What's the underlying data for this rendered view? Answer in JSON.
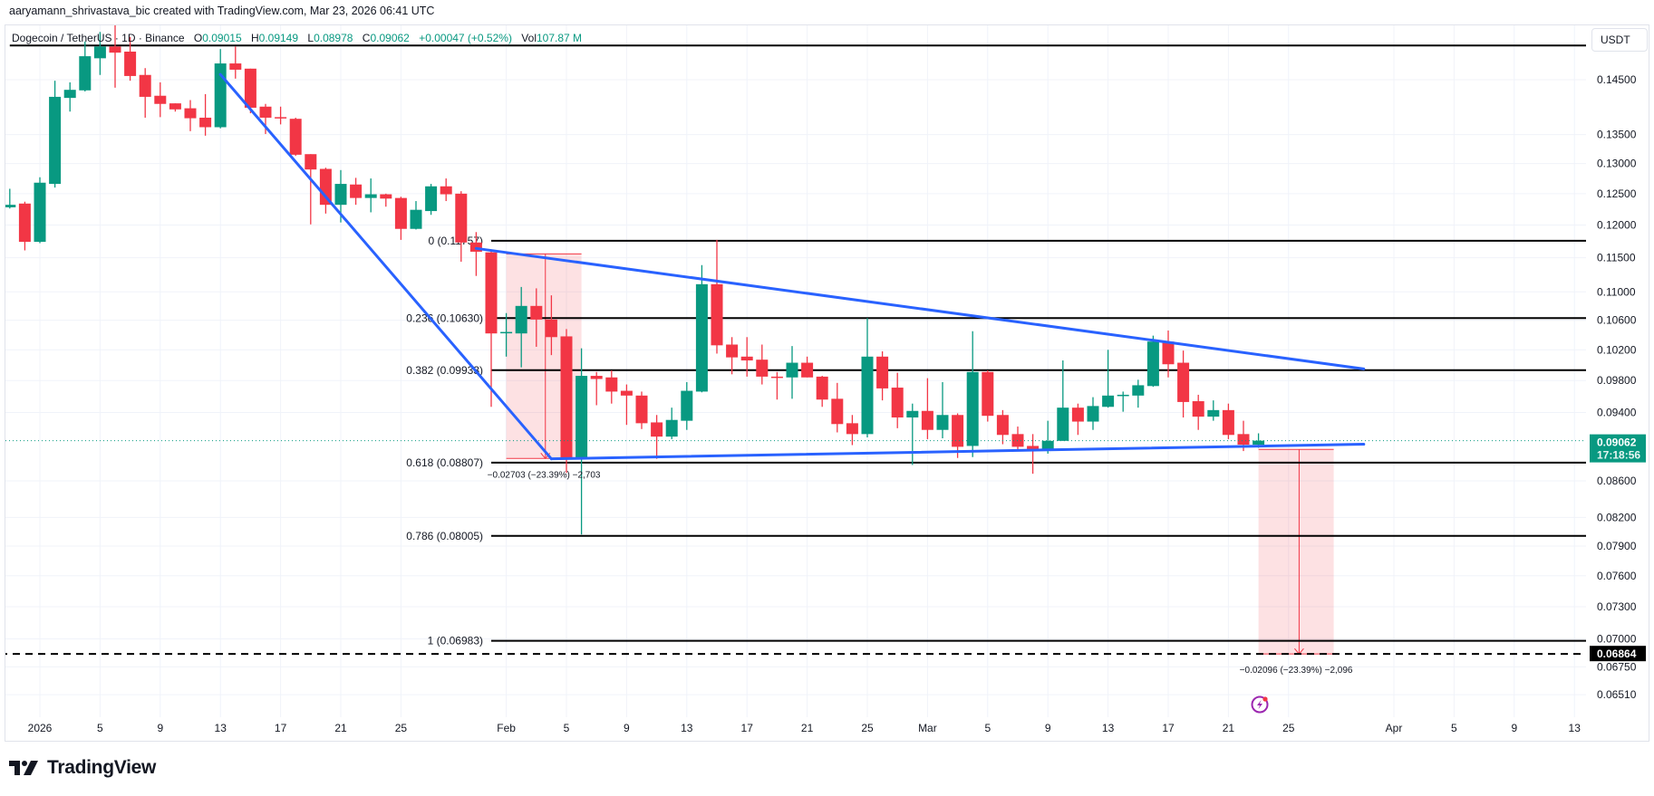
{
  "header": {
    "credit": "aaryamann_shrivastava_bic created with TradingView.com, Mar 23, 2026 06:41 UTC"
  },
  "legend": {
    "symbol": "Dogecoin / TetherUS · 1D · Binance",
    "open_label": "O",
    "open": "0.09015",
    "high_label": "H",
    "high": "0.09149",
    "low_label": "L",
    "low": "0.08978",
    "close_label": "C",
    "close": "0.09062",
    "change": "+0.00047 (+0.52%)",
    "vol_label": "Vol",
    "vol": "107.87 M"
  },
  "currency_button": "USDT",
  "brand": "TradingView",
  "colors": {
    "up": "#089981",
    "down": "#F23645",
    "trendline": "#2962FF",
    "measure_fill": "rgba(242,54,69,0.15)",
    "measure_line": "#F23645",
    "fib_line": "#000000",
    "grid": "#f0f3fa",
    "alert_icon": "#9C27B0"
  },
  "chart_data": {
    "type": "candlestick",
    "title": "",
    "y_scale": "log",
    "grid": true,
    "ylim": [
      0.064,
      0.158
    ],
    "xlim": [
      "2025-12-29",
      "2026-04-15"
    ],
    "price_ticks": [
      "0.14500",
      "0.13500",
      "0.13000",
      "0.12500",
      "0.12000",
      "0.11500",
      "0.11000",
      "0.10600",
      "0.10200",
      "0.09800",
      "0.09400",
      "0.08600",
      "0.08200",
      "0.07900",
      "0.07600",
      "0.07300",
      "0.07000",
      "0.06750",
      "0.06510"
    ],
    "time_ticks": [
      {
        "date": "2026-01-01",
        "label": "2026"
      },
      {
        "date": "2026-01-05",
        "label": "5"
      },
      {
        "date": "2026-01-09",
        "label": "9"
      },
      {
        "date": "2026-01-13",
        "label": "13"
      },
      {
        "date": "2026-01-17",
        "label": "17"
      },
      {
        "date": "2026-01-21",
        "label": "21"
      },
      {
        "date": "2026-01-25",
        "label": "25"
      },
      {
        "date": "2026-02-01",
        "label": "Feb"
      },
      {
        "date": "2026-02-05",
        "label": "5"
      },
      {
        "date": "2026-02-09",
        "label": "9"
      },
      {
        "date": "2026-02-13",
        "label": "13"
      },
      {
        "date": "2026-02-17",
        "label": "17"
      },
      {
        "date": "2026-02-21",
        "label": "21"
      },
      {
        "date": "2026-02-25",
        "label": "25"
      },
      {
        "date": "2026-03-01",
        "label": "Mar"
      },
      {
        "date": "2026-03-05",
        "label": "5"
      },
      {
        "date": "2026-03-09",
        "label": "9"
      },
      {
        "date": "2026-03-13",
        "label": "13"
      },
      {
        "date": "2026-03-17",
        "label": "17"
      },
      {
        "date": "2026-03-21",
        "label": "21"
      },
      {
        "date": "2026-03-25",
        "label": "25"
      },
      {
        "date": "2026-04-01",
        "label": "Apr"
      },
      {
        "date": "2026-04-05",
        "label": "5"
      },
      {
        "date": "2026-04-09",
        "label": "9"
      },
      {
        "date": "2026-04-13",
        "label": "13"
      }
    ],
    "candles": [
      [
        "2025-12-30",
        0.1228,
        0.1258,
        0.1226,
        0.1232
      ],
      [
        "2025-12-31",
        0.1234,
        0.1237,
        0.1161,
        0.1174
      ],
      [
        "2026-01-01",
        0.1174,
        0.1277,
        0.1172,
        0.1268
      ],
      [
        "2026-01-02",
        0.1266,
        0.1448,
        0.126,
        0.1418
      ],
      [
        "2026-01-03",
        0.1416,
        0.1445,
        0.1391,
        0.1431
      ],
      [
        "2026-01-04",
        0.143,
        0.1524,
        0.1428,
        0.1495
      ],
      [
        "2026-01-05",
        0.1491,
        0.1543,
        0.1459,
        0.1514
      ],
      [
        "2026-01-06",
        0.1514,
        0.156,
        0.1435,
        0.1502
      ],
      [
        "2026-01-07",
        0.1504,
        0.1533,
        0.1448,
        0.1457
      ],
      [
        "2026-01-08",
        0.1459,
        0.1472,
        0.138,
        0.1418
      ],
      [
        "2026-01-09",
        0.142,
        0.1445,
        0.1381,
        0.1405
      ],
      [
        "2026-01-10",
        0.1406,
        0.1406,
        0.1391,
        0.1395
      ],
      [
        "2026-01-11",
        0.1397,
        0.1412,
        0.1356,
        0.1379
      ],
      [
        "2026-01-12",
        0.138,
        0.1423,
        0.1348,
        0.1363
      ],
      [
        "2026-01-13",
        0.1363,
        0.1509,
        0.1361,
        0.1481
      ],
      [
        "2026-01-14",
        0.1481,
        0.1514,
        0.1452,
        0.1469
      ],
      [
        "2026-01-15",
        0.1471,
        0.1471,
        0.1388,
        0.1398
      ],
      [
        "2026-01-16",
        0.14,
        0.1405,
        0.1351,
        0.138
      ],
      [
        "2026-01-17",
        0.1381,
        0.14,
        0.1368,
        0.1379
      ],
      [
        "2026-01-18",
        0.1378,
        0.138,
        0.1313,
        0.1315
      ],
      [
        "2026-01-19",
        0.1316,
        0.1316,
        0.1201,
        0.129
      ],
      [
        "2026-01-20",
        0.1291,
        0.1293,
        0.1218,
        0.1232
      ],
      [
        "2026-01-21",
        0.1232,
        0.1289,
        0.1204,
        0.1266
      ],
      [
        "2026-01-22",
        0.1265,
        0.1276,
        0.1232,
        0.1243
      ],
      [
        "2026-01-23",
        0.1243,
        0.1275,
        0.122,
        0.1249
      ],
      [
        "2026-01-24",
        0.1249,
        0.125,
        0.1229,
        0.1242
      ],
      [
        "2026-01-25",
        0.1243,
        0.1245,
        0.1177,
        0.1194
      ],
      [
        "2026-01-26",
        0.1194,
        0.1238,
        0.1193,
        0.1224
      ],
      [
        "2026-01-27",
        0.1222,
        0.1266,
        0.1216,
        0.1262
      ],
      [
        "2026-01-28",
        0.1262,
        0.1275,
        0.1238,
        0.1249
      ],
      [
        "2026-01-29",
        0.125,
        0.1254,
        0.1144,
        0.1173
      ],
      [
        "2026-01-30",
        0.1173,
        0.1189,
        0.1123,
        0.1159
      ],
      [
        "2026-01-31",
        0.1158,
        0.116,
        0.0947,
        0.1042
      ],
      [
        "2026-02-01",
        0.1043,
        0.107,
        0.1011,
        0.1044
      ],
      [
        "2026-02-02",
        0.1042,
        0.1107,
        0.0997,
        0.108
      ],
      [
        "2026-02-03",
        0.108,
        0.1105,
        0.1024,
        0.1061
      ],
      [
        "2026-02-04",
        0.1061,
        0.1095,
        0.1013,
        0.1037
      ],
      [
        "2026-02-05",
        0.1038,
        0.1048,
        0.0869,
        0.0885
      ],
      [
        "2026-02-06",
        0.0885,
        0.1022,
        0.0802,
        0.0986
      ],
      [
        "2026-02-07",
        0.0986,
        0.0991,
        0.0949,
        0.0982
      ],
      [
        "2026-02-08",
        0.0984,
        0.0993,
        0.0951,
        0.0966
      ],
      [
        "2026-02-09",
        0.0967,
        0.0975,
        0.0925,
        0.0961
      ],
      [
        "2026-02-10",
        0.0961,
        0.0966,
        0.092,
        0.0927
      ],
      [
        "2026-02-11",
        0.0928,
        0.0937,
        0.0885,
        0.0911
      ],
      [
        "2026-02-12",
        0.0911,
        0.0946,
        0.0908,
        0.0931
      ],
      [
        "2026-02-13",
        0.093,
        0.0978,
        0.0919,
        0.0967
      ],
      [
        "2026-02-14",
        0.0966,
        0.1139,
        0.0965,
        0.1111
      ],
      [
        "2026-02-15",
        0.1111,
        0.1177,
        0.1015,
        0.1026
      ],
      [
        "2026-02-16",
        0.1027,
        0.1037,
        0.0988,
        0.101
      ],
      [
        "2026-02-17",
        0.1011,
        0.1037,
        0.0985,
        0.1006
      ],
      [
        "2026-02-18",
        0.1007,
        0.1027,
        0.0975,
        0.0985
      ],
      [
        "2026-02-19",
        0.0985,
        0.0991,
        0.0956,
        0.0984
      ],
      [
        "2026-02-20",
        0.0984,
        0.1025,
        0.0957,
        0.1003
      ],
      [
        "2026-02-21",
        0.1003,
        0.1011,
        0.0984,
        0.0984
      ],
      [
        "2026-02-22",
        0.0985,
        0.0986,
        0.0947,
        0.0956
      ],
      [
        "2026-02-23",
        0.0957,
        0.0977,
        0.0916,
        0.0926
      ],
      [
        "2026-02-24",
        0.0927,
        0.0937,
        0.0901,
        0.0914
      ],
      [
        "2026-02-25",
        0.0914,
        0.1063,
        0.091,
        0.1011
      ],
      [
        "2026-02-26",
        0.1011,
        0.1018,
        0.0955,
        0.097
      ],
      [
        "2026-02-27",
        0.0971,
        0.099,
        0.0921,
        0.0934
      ],
      [
        "2026-02-28",
        0.0934,
        0.0951,
        0.0878,
        0.0942
      ],
      [
        "2026-03-01",
        0.0942,
        0.0983,
        0.0908,
        0.0919
      ],
      [
        "2026-03-02",
        0.0919,
        0.0978,
        0.0909,
        0.0937
      ],
      [
        "2026-03-03",
        0.0937,
        0.0939,
        0.0886,
        0.0899
      ],
      [
        "2026-03-04",
        0.09,
        0.1045,
        0.0887,
        0.0991
      ],
      [
        "2026-03-05",
        0.0991,
        0.0993,
        0.0929,
        0.0936
      ],
      [
        "2026-03-06",
        0.0937,
        0.0943,
        0.0902,
        0.0913
      ],
      [
        "2026-03-07",
        0.0914,
        0.0923,
        0.0894,
        0.0899
      ],
      [
        "2026-03-08",
        0.09,
        0.0914,
        0.0868,
        0.0895
      ],
      [
        "2026-03-09",
        0.0895,
        0.093,
        0.0891,
        0.0906
      ],
      [
        "2026-03-10",
        0.0906,
        0.1006,
        0.0906,
        0.0946
      ],
      [
        "2026-03-11",
        0.0946,
        0.0951,
        0.0913,
        0.0929
      ],
      [
        "2026-03-12",
        0.0929,
        0.0959,
        0.0919,
        0.0948
      ],
      [
        "2026-03-13",
        0.0947,
        0.102,
        0.0946,
        0.0961
      ],
      [
        "2026-03-14",
        0.0961,
        0.0966,
        0.0941,
        0.0962
      ],
      [
        "2026-03-15",
        0.0961,
        0.0981,
        0.0946,
        0.0974
      ],
      [
        "2026-03-16",
        0.0973,
        0.1039,
        0.0972,
        0.1031
      ],
      [
        "2026-03-17",
        0.1031,
        0.1046,
        0.0984,
        0.1001
      ],
      [
        "2026-03-18",
        0.1003,
        0.1019,
        0.0934,
        0.0953
      ],
      [
        "2026-03-19",
        0.0954,
        0.0962,
        0.0919,
        0.0935
      ],
      [
        "2026-03-20",
        0.0935,
        0.0955,
        0.093,
        0.0943
      ],
      [
        "2026-03-21",
        0.0943,
        0.0951,
        0.0908,
        0.0913
      ],
      [
        "2026-03-22",
        0.0914,
        0.093,
        0.0894,
        0.09015
      ],
      [
        "2026-03-23",
        0.09015,
        0.09149,
        0.08978,
        0.09062
      ]
    ],
    "last_price": {
      "value": 0.09062,
      "label": "0.09062",
      "countdown": "17:18:56"
    },
    "target_price": {
      "value": 0.06864,
      "label": "0.06864"
    },
    "horizontal_line": {
      "price": 0.1516,
      "from": "2025-12-30"
    },
    "fib_levels": [
      {
        "ratio": 0,
        "price": 0.11757,
        "label": "0 (0.11757)"
      },
      {
        "ratio": 0.236,
        "price": 0.1063,
        "label": "0.236 (0.10630)"
      },
      {
        "ratio": 0.382,
        "price": 0.09933,
        "label": "0.382 (0.09933)"
      },
      {
        "ratio": 0.618,
        "price": 0.08807,
        "label": "0.618 (0.08807)"
      },
      {
        "ratio": 0.786,
        "price": 0.08005,
        "label": "0.786 (0.08005)"
      },
      {
        "ratio": 1,
        "price": 0.06983,
        "label": "1 (0.06983)"
      }
    ],
    "fib_from": "2026-01-31",
    "trendlines": [
      {
        "name": "downtrend",
        "from": [
          "2026-01-13",
          0.146
        ],
        "to": [
          "2026-02-04",
          0.0885
        ]
      },
      {
        "name": "triangle-upper",
        "from": [
          "2026-01-30",
          0.1164
        ],
        "to": [
          "2026-03-30",
          0.0995
        ]
      },
      {
        "name": "triangle-lower",
        "from": [
          "2026-02-04",
          0.0885
        ],
        "to": [
          "2026-03-30",
          0.0902
        ]
      }
    ],
    "measures": [
      {
        "from": "2026-02-01",
        "to": "2026-02-06",
        "arrow_at": "2026-02-03.6",
        "top": 0.11557,
        "bottom": 0.08854,
        "label": "−0.02703 (−23.39%) −2,703"
      },
      {
        "from": "2026-03-23",
        "to": "2026-03-28",
        "arrow_at": "2026-03-25.7",
        "top": 0.0896,
        "bottom": 0.06864,
        "label": "−0.02096 (−23.39%) −2,096"
      }
    ]
  }
}
